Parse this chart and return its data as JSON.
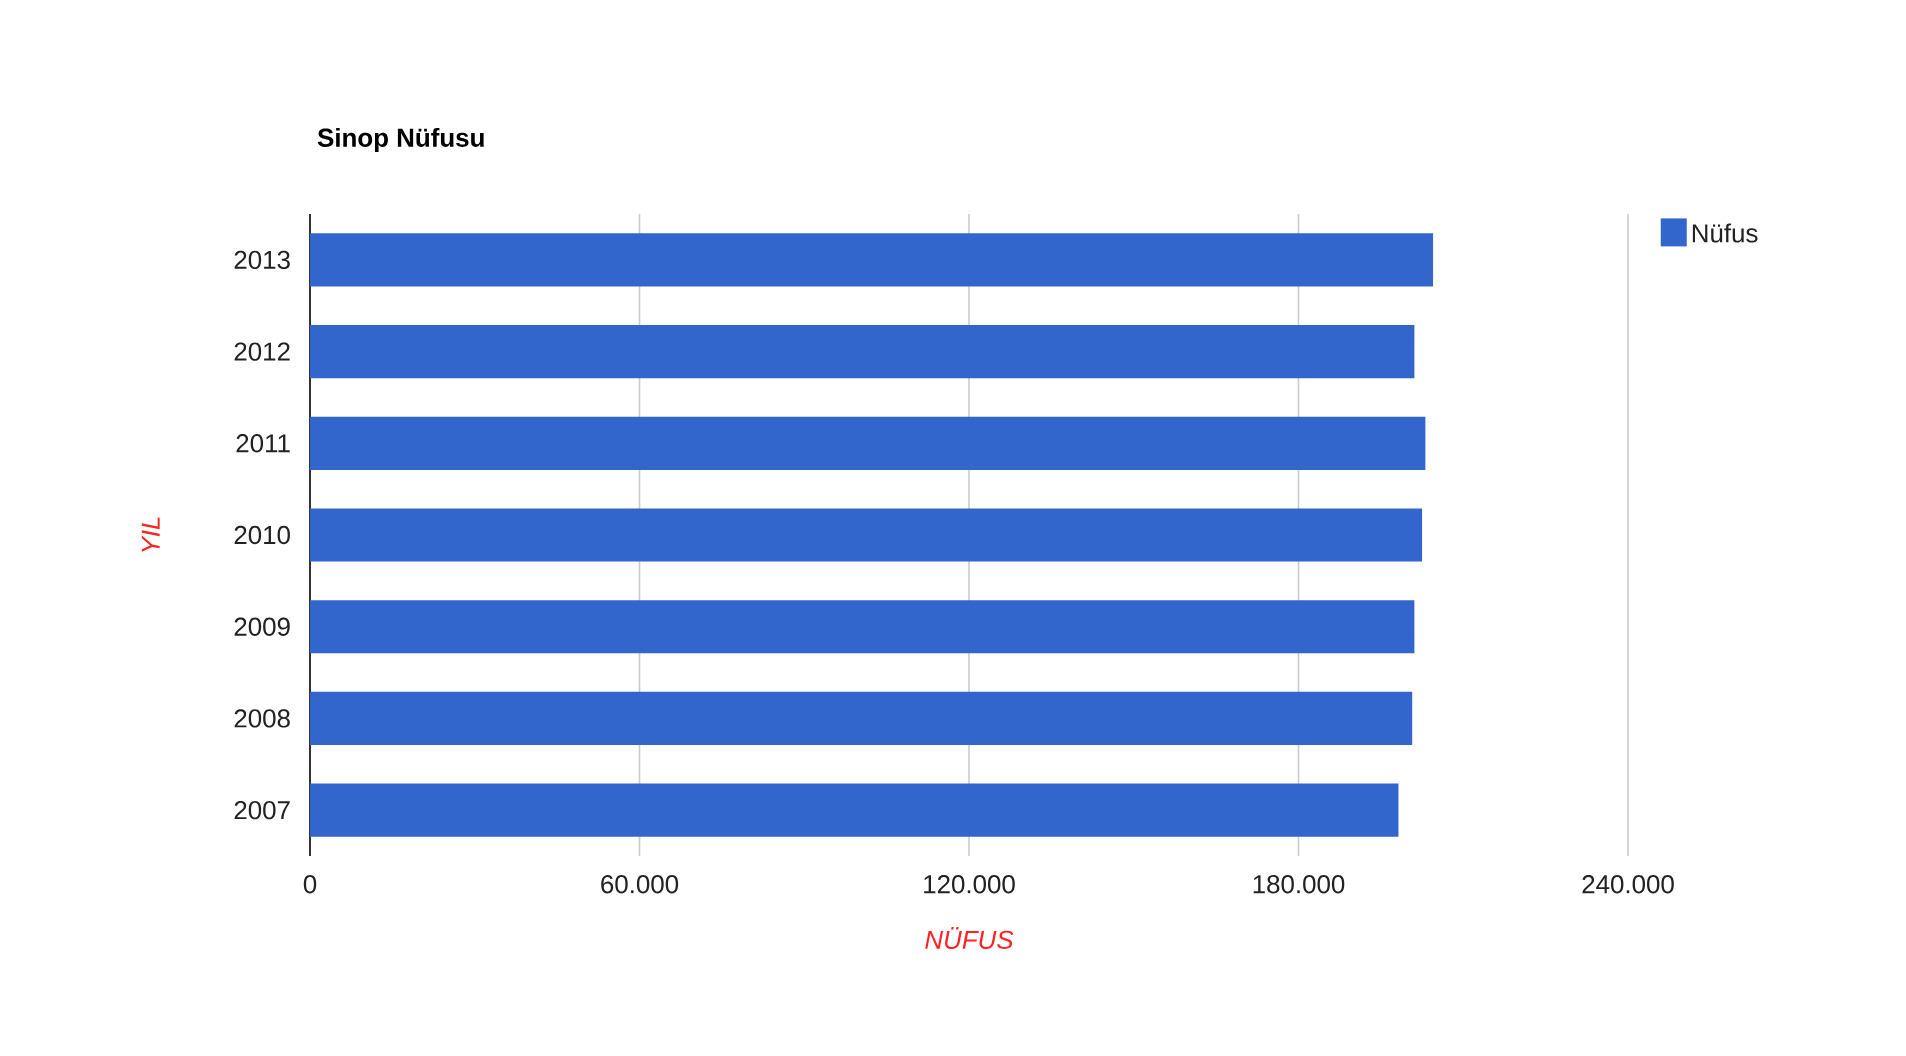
{
  "chart_data": {
    "type": "bar",
    "orientation": "horizontal",
    "title": "Sinop Nüfusu",
    "xlabel": "NÜFUS",
    "ylabel": "YIL",
    "categories": [
      "2013",
      "2012",
      "2011",
      "2010",
      "2009",
      "2008",
      "2007"
    ],
    "series": [
      {
        "name": "Nüfus",
        "color": "#3366cc",
        "values": [
          204500,
          201100,
          203100,
          202500,
          201100,
          200700,
          198200
        ]
      }
    ],
    "xlim": [
      0,
      240000
    ],
    "xticks": [
      0,
      {
        "value": 60000,
        "label": "60.000"
      },
      {
        "value": 120000,
        "label": "120.000"
      },
      {
        "value": 180000,
        "label": "180.000"
      },
      {
        "value": 240000,
        "label": "240.000"
      }
    ],
    "grid": "x",
    "legend": "top right"
  }
}
